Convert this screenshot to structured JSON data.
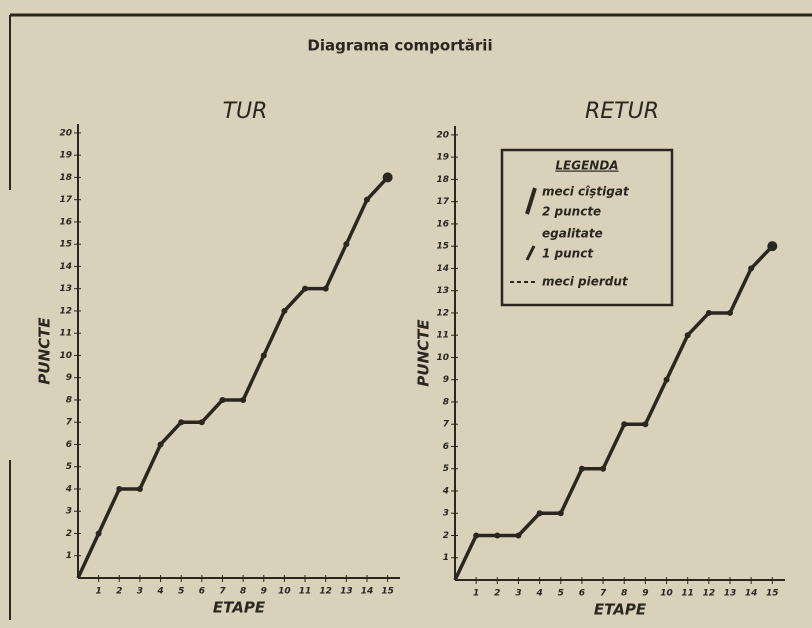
{
  "title": "Diagrama comportării",
  "chart_data": [
    {
      "type": "line",
      "title": "TUR",
      "ylabel": "PUNCTE",
      "xlabel": "ETAPE",
      "x": [
        0,
        1,
        2,
        3,
        4,
        5,
        6,
        7,
        8,
        9,
        10,
        11,
        12,
        13,
        14,
        15
      ],
      "series": [
        {
          "name": "TUR",
          "color": "#2b2620",
          "values": [
            0,
            2,
            4,
            4,
            6,
            7,
            7,
            8,
            8,
            10,
            12,
            13,
            13,
            15,
            17,
            18
          ]
        }
      ],
      "xlim": [
        0,
        15.6
      ],
      "xticks": [
        1,
        2,
        3,
        4,
        5,
        6,
        7,
        8,
        9,
        10,
        11,
        12,
        13,
        14,
        15
      ],
      "ylim": [
        0,
        20.4
      ],
      "yticks": [
        1,
        2,
        3,
        4,
        5,
        6,
        7,
        8,
        9,
        10,
        11,
        12,
        13,
        14,
        15,
        16,
        17,
        18,
        19,
        20
      ]
    },
    {
      "type": "line",
      "title": "RETUR",
      "ylabel": "PUNCTE",
      "xlabel": "ETAPE",
      "x": [
        0,
        1,
        2,
        3,
        4,
        5,
        6,
        7,
        8,
        9,
        10,
        11,
        12,
        13,
        14,
        15
      ],
      "series": [
        {
          "name": "RETUR",
          "color": "#2b2620",
          "values": [
            0,
            2,
            2,
            2,
            3,
            3,
            5,
            5,
            7,
            7,
            9,
            11,
            12,
            12,
            14,
            15
          ]
        }
      ],
      "xlim": [
        0,
        15.6
      ],
      "xticks": [
        1,
        2,
        3,
        4,
        5,
        6,
        7,
        8,
        9,
        10,
        11,
        12,
        13,
        14,
        15
      ],
      "ylim": [
        0,
        20.4
      ],
      "yticks": [
        1,
        2,
        3,
        4,
        5,
        6,
        7,
        8,
        9,
        10,
        11,
        12,
        13,
        14,
        15,
        16,
        17,
        18,
        19,
        20
      ],
      "legend": {
        "title": "LEGENDA",
        "items": [
          "meci cîştigat",
          "2 puncte",
          "egalitate",
          "1 punct",
          "meci pierdut"
        ]
      }
    }
  ]
}
